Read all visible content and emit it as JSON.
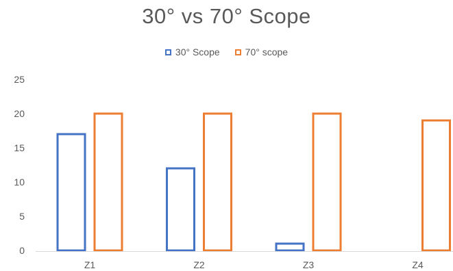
{
  "chart_data": {
    "type": "bar",
    "title": "30° vs 70° Scope",
    "categories": [
      "Z1",
      "Z2",
      "Z3",
      "Z4"
    ],
    "series": [
      {
        "name": "30° Scope",
        "values": [
          17,
          12,
          1,
          0
        ],
        "color": "#4472C4"
      },
      {
        "name": "70° scope",
        "values": [
          20,
          20,
          20,
          19
        ],
        "color": "#ED7D31"
      }
    ],
    "ylim": [
      0,
      25
    ],
    "yticks": [
      0,
      5,
      10,
      15,
      20,
      25
    ],
    "grid": false,
    "legend_position": "top-center",
    "bar_style": "outline"
  }
}
